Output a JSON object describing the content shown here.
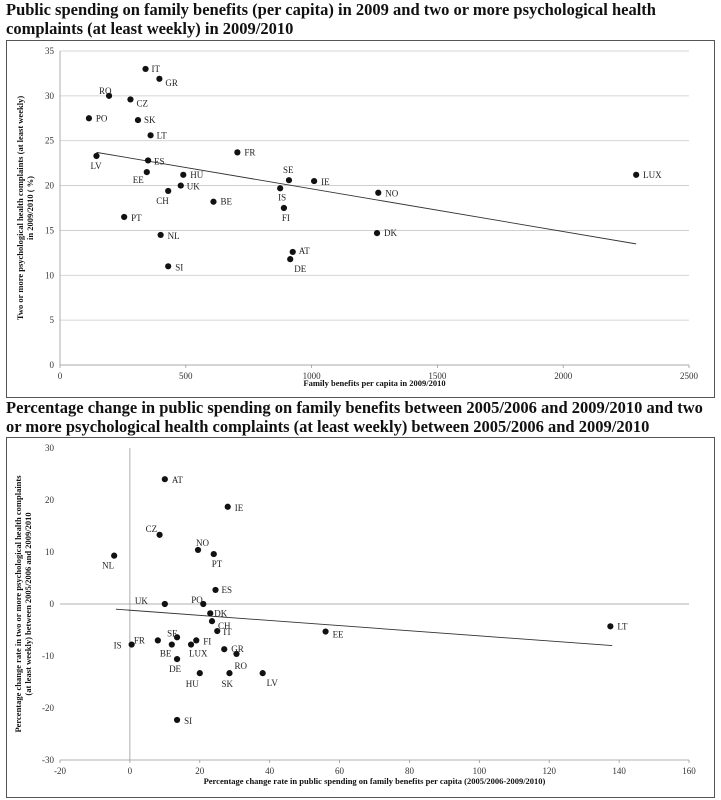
{
  "chart_data": [
    {
      "type": "scatter",
      "title": "Public spending on family benefits (per capita) in 2009 and two or more psychological health complaints (at least weekly) in 2009/2010",
      "xlabel": "Family benefits per capita in 2009/2010",
      "ylabel": "Two or more psychological health complaints (at least weekly) in 2009/2010 ( %)",
      "xlim": [
        0,
        2500
      ],
      "ylim": [
        0,
        35
      ],
      "xticks": [
        "0",
        "500",
        "1000",
        "1500",
        "2000",
        "2500"
      ],
      "yticks": [
        "0",
        "5",
        "10",
        "15",
        "20",
        "25",
        "30",
        "35"
      ],
      "grid": true,
      "trendline": [
        [
          145,
          23.7
        ],
        [
          2290,
          13.5
        ]
      ],
      "points": [
        {
          "label": "IT",
          "x": 340,
          "y": 33.0
        },
        {
          "label": "GR",
          "x": 395,
          "y": 31.9
        },
        {
          "label": "RO",
          "x": 195,
          "y": 30.0
        },
        {
          "label": "CZ",
          "x": 280,
          "y": 29.6
        },
        {
          "label": "PO",
          "x": 115,
          "y": 27.5
        },
        {
          "label": "SK",
          "x": 310,
          "y": 27.3
        },
        {
          "label": "LT",
          "x": 360,
          "y": 25.6
        },
        {
          "label": "FR",
          "x": 705,
          "y": 23.7
        },
        {
          "label": "LV",
          "x": 145,
          "y": 23.3
        },
        {
          "label": "ES",
          "x": 350,
          "y": 22.8
        },
        {
          "label": "EE",
          "x": 345,
          "y": 21.5
        },
        {
          "label": "HU",
          "x": 490,
          "y": 21.2
        },
        {
          "label": "LUX",
          "x": 2290,
          "y": 21.2
        },
        {
          "label": "SE",
          "x": 910,
          "y": 20.6
        },
        {
          "label": "IE",
          "x": 1010,
          "y": 20.5
        },
        {
          "label": "UK",
          "x": 480,
          "y": 20.0
        },
        {
          "label": "IS",
          "x": 875,
          "y": 19.7
        },
        {
          "label": "CH",
          "x": 430,
          "y": 19.4
        },
        {
          "label": "NO",
          "x": 1265,
          "y": 19.2
        },
        {
          "label": "BE",
          "x": 610,
          "y": 18.2
        },
        {
          "label": "FI",
          "x": 890,
          "y": 17.5
        },
        {
          "label": "PT",
          "x": 255,
          "y": 16.5
        },
        {
          "label": "DK",
          "x": 1260,
          "y": 14.7
        },
        {
          "label": "NL",
          "x": 400,
          "y": 14.5
        },
        {
          "label": "AT",
          "x": 925,
          "y": 12.6
        },
        {
          "label": "DE",
          "x": 915,
          "y": 11.8
        },
        {
          "label": "SI",
          "x": 430,
          "y": 11.0
        }
      ]
    },
    {
      "type": "scatter",
      "title": "Percentage change in public spending on family benefits between 2005/2006 and 2009/2010 and two or more psychological health complaints (at least weekly) between 2005/2006 and 2009/2010",
      "xlabel": "Percentage change rate  in public spending on family benefits per capita (2005/2006-2009/2010)",
      "ylabel": "Percentage change rate  in  two or more psychological health complaints (at least weekly) between 2005/2006 and 2009/2010",
      "xlim": [
        -20,
        160
      ],
      "ylim": [
        -30,
        30
      ],
      "xticks": [
        "-20",
        "0",
        "20",
        "40",
        "60",
        "80",
        "100",
        "120",
        "140",
        "160"
      ],
      "yticks": [
        "-30",
        "-20",
        "-10",
        "0",
        "10",
        "20",
        "30"
      ],
      "grid": false,
      "trendline": [
        [
          -4,
          -1.0
        ],
        [
          138,
          -8.0
        ]
      ],
      "points": [
        {
          "label": "AT",
          "x": 10,
          "y": 24.0
        },
        {
          "label": "IE",
          "x": 28,
          "y": 18.7
        },
        {
          "label": "CZ",
          "x": 8.5,
          "y": 13.3
        },
        {
          "label": "NO",
          "x": 19.5,
          "y": 10.4
        },
        {
          "label": "PT",
          "x": 24,
          "y": 9.6
        },
        {
          "label": "NL",
          "x": -4.5,
          "y": 9.3
        },
        {
          "label": "ES",
          "x": 24.5,
          "y": 2.7
        },
        {
          "label": "UK",
          "x": 10,
          "y": 0.0
        },
        {
          "label": "PO",
          "x": 21,
          "y": 0.0
        },
        {
          "label": "DK",
          "x": 23,
          "y": -1.8
        },
        {
          "label": "CH",
          "x": 23.5,
          "y": -3.3
        },
        {
          "label": "EE",
          "x": 56,
          "y": -5.3
        },
        {
          "label": "LT",
          "x": 137.5,
          "y": -4.3
        },
        {
          "label": "IT",
          "x": 25,
          "y": -5.2
        },
        {
          "label": "SE",
          "x": 13.5,
          "y": -6.4
        },
        {
          "label": "FR",
          "x": 8,
          "y": -7.0
        },
        {
          "label": "FI",
          "x": 19,
          "y": -7.0
        },
        {
          "label": "IS",
          "x": 0.5,
          "y": -7.8
        },
        {
          "label": "BE",
          "x": 12,
          "y": -7.8
        },
        {
          "label": "LUX",
          "x": 17.5,
          "y": -7.8
        },
        {
          "label": "GR",
          "x": 27,
          "y": -8.7
        },
        {
          "label": "RO",
          "x": 30.5,
          "y": -9.6
        },
        {
          "label": "DE",
          "x": 13.5,
          "y": -10.6
        },
        {
          "label": "HU",
          "x": 20,
          "y": -13.3
        },
        {
          "label": "SK",
          "x": 28.5,
          "y": -13.3
        },
        {
          "label": "LV",
          "x": 38,
          "y": -13.3
        },
        {
          "label": "SI",
          "x": 13.5,
          "y": -22.3
        }
      ]
    }
  ]
}
